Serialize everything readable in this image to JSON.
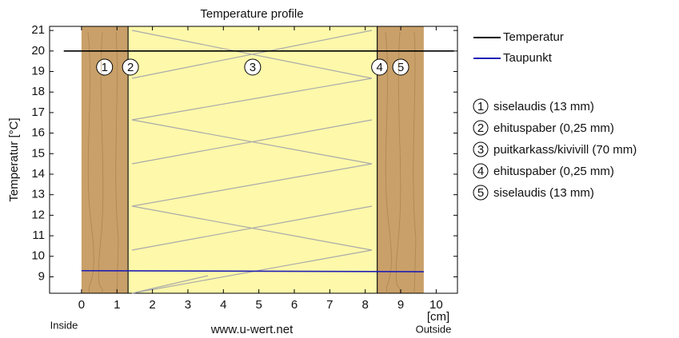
{
  "chart_data": {
    "type": "line",
    "title": "Temperature profile",
    "y_label": "Temperatur [°C]",
    "x_unit": "[cm]",
    "inside_label": "Inside",
    "outside_label": "Outside",
    "source": "www.u-wert.net",
    "xlim": [
      -0.9,
      10.6
    ],
    "ylim": [
      8.2,
      21.2
    ],
    "xticks": [
      0,
      1,
      2,
      3,
      4,
      5,
      6,
      7,
      8,
      9,
      10
    ],
    "yticks": [
      9,
      10,
      11,
      12,
      13,
      14,
      15,
      16,
      17,
      18,
      19,
      20,
      21
    ],
    "layers": [
      {
        "label": "1",
        "name": "siselaudis (13 mm)",
        "start": 0,
        "end": 1.3,
        "color": "#c9a069"
      },
      {
        "label": "2",
        "name": "ehituspaber (0,25 mm)",
        "start": 1.3,
        "end": 1.325,
        "color": "#000000"
      },
      {
        "label": "3",
        "name": "puitkarkass/kivivill (70 mm)",
        "start": 1.325,
        "end": 8.325,
        "color": "#fdf8aa"
      },
      {
        "label": "4",
        "name": "ehituspaber (0,25 mm)",
        "start": 8.325,
        "end": 8.35,
        "color": "#000000"
      },
      {
        "label": "5",
        "name": "siselaudis (13 mm)",
        "start": 8.35,
        "end": 9.65,
        "color": "#c9a069"
      }
    ],
    "series": [
      {
        "name": "Temperatur",
        "color": "#000000",
        "x": [
          -0.5,
          0,
          1.3,
          8.35,
          9.65,
          10.5
        ],
        "values": [
          20,
          20,
          20,
          20,
          20,
          20
        ]
      },
      {
        "name": "Taupunkt",
        "color": "#1f1fb4",
        "x": [
          0,
          9.65
        ],
        "values": [
          9.3,
          9.25
        ]
      }
    ]
  }
}
